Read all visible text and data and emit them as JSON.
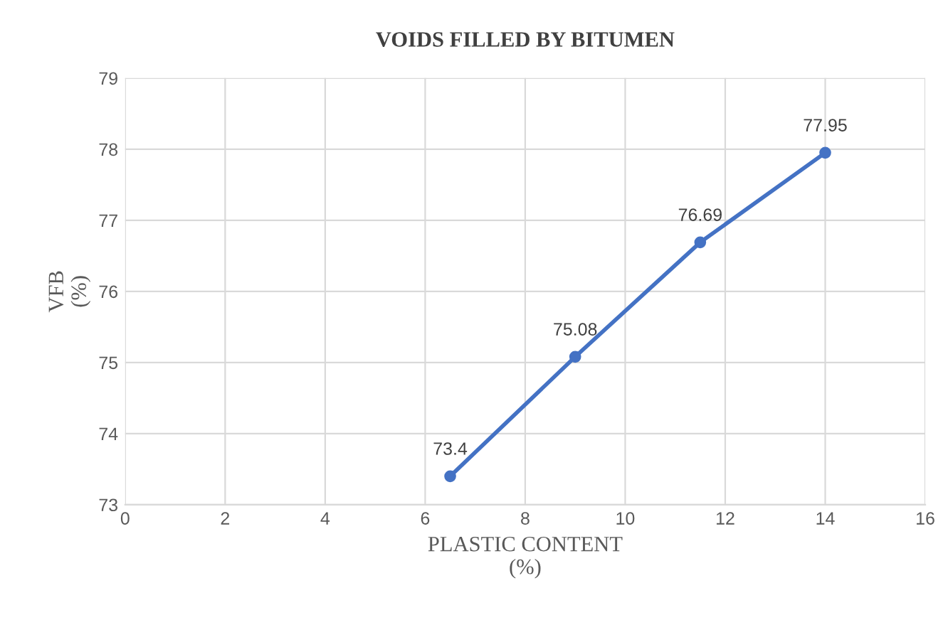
{
  "chart_data": {
    "type": "line",
    "title": "VOIDS FILLED BY BITUMEN",
    "xlabel": "PLASTIC CONTENT\n(%)",
    "ylabel": "VFB\n(%)",
    "x": [
      6.5,
      9,
      11.5,
      14
    ],
    "series": [
      {
        "color": "#4472c4",
        "values": [
          73.4,
          75.08,
          76.69,
          77.95
        ],
        "value_labels": [
          "73.4",
          "75.08",
          "76.69",
          "77.95"
        ]
      }
    ],
    "xlim": [
      0,
      16
    ],
    "xticks": [
      0,
      2,
      4,
      6,
      8,
      10,
      12,
      14,
      16
    ],
    "ylim": [
      73,
      79
    ],
    "yticks": [
      73,
      74,
      75,
      76,
      77,
      78,
      79
    ],
    "grid": true,
    "marker": "circle",
    "line_style": "solid"
  }
}
